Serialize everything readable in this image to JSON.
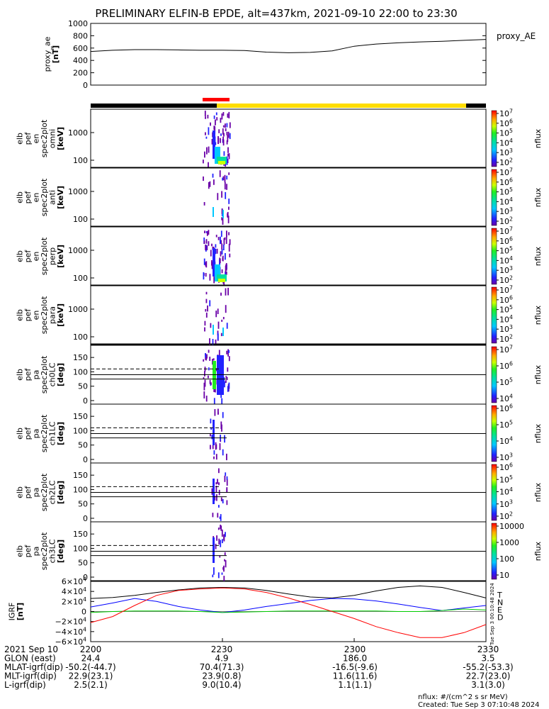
{
  "title": "PRELIMINARY ELFIN-B EPDE, alt=437km, 2021-09-10 22:00 to 23:30",
  "proxy_ae": {
    "ylabel": [
      "proxy_ae",
      "[nT]"
    ],
    "legend": "proxy_AE",
    "ticks": [
      "1000",
      "800",
      "600",
      "400",
      "200",
      "0"
    ],
    "tick_values": [
      1000,
      800,
      600,
      400,
      200,
      0
    ],
    "ylim": [
      0,
      1000
    ],
    "x_minutes": [
      0,
      5,
      10,
      15,
      20,
      25,
      30,
      35,
      40,
      45,
      50,
      55,
      60,
      65,
      70,
      75,
      80,
      85,
      90
    ],
    "values": [
      545,
      565,
      575,
      575,
      570,
      565,
      565,
      560,
      535,
      525,
      530,
      555,
      630,
      665,
      685,
      700,
      710,
      725,
      740
    ]
  },
  "spectrograms": [
    {
      "name": "omni",
      "ylabel": [
        "elb",
        "pef",
        "en",
        "spec2plot",
        "omni",
        "[keV]"
      ],
      "ticks": [
        "1000",
        "100"
      ],
      "cbar_ticks": [
        "10^7",
        "10^6",
        "10^5",
        "10^4",
        "10^3",
        "10^2"
      ],
      "cbar_label": "nflux"
    },
    {
      "name": "anti",
      "ylabel": [
        "elb",
        "pef",
        "en",
        "spec2plot",
        "anti",
        "[keV]"
      ],
      "ticks": [
        "1000",
        "100"
      ],
      "cbar_ticks": [
        "10^7",
        "10^6",
        "10^5",
        "10^4",
        "10^3",
        "10^2"
      ],
      "cbar_label": "nflux"
    },
    {
      "name": "perp",
      "ylabel": [
        "elb",
        "pef",
        "en",
        "spec2plot",
        "perp",
        "[keV]"
      ],
      "ticks": [
        "1000",
        "100"
      ],
      "cbar_ticks": [
        "10^7",
        "10^6",
        "10^5",
        "10^4",
        "10^3",
        "10^2"
      ],
      "cbar_label": "nflux"
    },
    {
      "name": "para",
      "ylabel": [
        "elb",
        "pef",
        "en",
        "spec2plot",
        "para",
        "[keV]"
      ],
      "ticks": [
        "1000",
        "100"
      ],
      "cbar_ticks": [
        "10^7",
        "10^6",
        "10^5",
        "10^4",
        "10^3",
        "10^2"
      ],
      "cbar_label": "nflux"
    }
  ],
  "pitch_angle": [
    {
      "name": "ch0LC",
      "ylabel": [
        "elb",
        "pef",
        "pa",
        "spec2plot",
        "ch0LC",
        "[deg]"
      ],
      "ticks": [
        "150",
        "100",
        "50",
        "0"
      ],
      "cbar_ticks": [
        "10^7",
        "10^6",
        "10^5",
        "10^4"
      ],
      "cbar_label": "nflux"
    },
    {
      "name": "ch1LC",
      "ylabel": [
        "elb",
        "pef",
        "pa",
        "spec2plot",
        "ch1LC",
        "[deg]"
      ],
      "ticks": [
        "150",
        "100",
        "50",
        "0"
      ],
      "cbar_ticks": [
        "10^6",
        "10^5",
        "10^4",
        "10^3"
      ],
      "cbar_label": "nflux"
    },
    {
      "name": "ch2LC",
      "ylabel": [
        "elb",
        "pef",
        "pa",
        "spec2plot",
        "ch2LC",
        "[deg]"
      ],
      "ticks": [
        "150",
        "100",
        "50",
        "0"
      ],
      "cbar_ticks": [
        "10^6",
        "10^5",
        "10^4",
        "10^3",
        "10^2"
      ],
      "cbar_label": "nflux"
    },
    {
      "name": "ch3LC",
      "ylabel": [
        "elb",
        "pef",
        "pa",
        "spec2plot",
        "ch3LC",
        "[deg]"
      ],
      "ticks": [
        "150",
        "100",
        "50",
        "0"
      ],
      "cbar_ticks": [
        "10000",
        "1000",
        "100",
        "10"
      ],
      "cbar_label": "nflux"
    }
  ],
  "igrf": {
    "ylabel": [
      "IGRF",
      "[nT]"
    ],
    "ticks": [
      "6×10^4",
      "4×10^4",
      "2×10^4",
      "0",
      "−2×10^4",
      "−4×10^4",
      "−6×10^4"
    ],
    "legend": [
      {
        "label": "T",
        "color": "#000000"
      },
      {
        "label": "N",
        "color": "#0000ff"
      },
      {
        "label": "E",
        "color": "#00cc00"
      },
      {
        "label": "D",
        "color": "#ff0000"
      }
    ],
    "ylim": [
      -60000,
      60000
    ],
    "x_minutes": [
      0,
      5,
      10,
      15,
      20,
      25,
      30,
      35,
      40,
      45,
      50,
      55,
      60,
      65,
      70,
      75,
      80,
      85,
      90
    ],
    "series": {
      "T": [
        26000,
        28000,
        32000,
        38000,
        43000,
        47000,
        48000,
        47000,
        42000,
        35000,
        29000,
        27000,
        32000,
        41000,
        48000,
        51000,
        48000,
        38000,
        27000
      ],
      "N": [
        9000,
        17000,
        26000,
        20000,
        10000,
        3000,
        -2000,
        3000,
        10000,
        16000,
        22000,
        26000,
        25000,
        21000,
        15000,
        8000,
        2000,
        7000,
        12000
      ],
      "E": [
        -2000,
        0,
        1000,
        1000,
        1000,
        0,
        -2000,
        -1000,
        0,
        1000,
        1000,
        1000,
        1000,
        1000,
        0,
        0,
        2000,
        5000,
        3000
      ],
      "D": [
        -22000,
        -10000,
        12000,
        32000,
        42000,
        45000,
        47000,
        45000,
        38000,
        27000,
        14000,
        0,
        -14000,
        -30000,
        -42000,
        -52000,
        -52000,
        -42000,
        -26000
      ]
    }
  },
  "time_axis": {
    "labels": [
      "2200",
      "2230",
      "2300",
      "2330"
    ],
    "rows": [
      {
        "name": "2021 Sep 10",
        "values": [
          "2200",
          "2230",
          "2300",
          "2330"
        ]
      },
      {
        "name": "GLON (east)",
        "values": [
          "24.4",
          "4.9",
          "186.0",
          "3.5"
        ]
      },
      {
        "name": "MLAT-igrf(dip)",
        "values": [
          "-50.2(-44.7)",
          "70.4(71.3)",
          "-16.5(-9.6)",
          "-55.2(-53.3)"
        ]
      },
      {
        "name": "MLT-igrf(dip)",
        "values": [
          "22.9(23.1)",
          "23.9(0.8)",
          "11.6(11.6)",
          "22.7(23.0)"
        ]
      },
      {
        "name": "L-igrf(dip)",
        "values": [
          "2.5(2.1)",
          "9.0(10.4)",
          "1.1(1.1)",
          "3.1(3.0)"
        ]
      }
    ]
  },
  "footer": {
    "units": "nflux: #/(cm^2 s sr MeV)",
    "created": "Created: Tue Sep  3 07:10:48 2024",
    "stamp": "Tue Sep  3 00:10:48 2024"
  },
  "colors": {
    "science_bar": "#ff0000",
    "orbit_day": "#ffdd00",
    "orbit_night": "#000000"
  }
}
